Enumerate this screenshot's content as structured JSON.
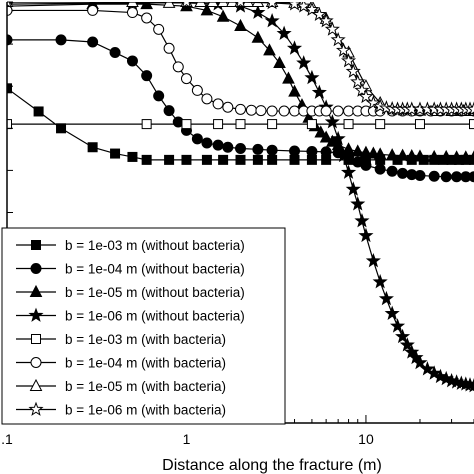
{
  "chart_data": {
    "type": "line",
    "xlabel": "Distance along the fracture (m)",
    "x_scale": "log",
    "x_ticks": [
      {
        "value": 0.1,
        "label": ".1"
      },
      {
        "value": 1,
        "label": "1"
      },
      {
        "value": 10,
        "label": "10"
      }
    ],
    "xlim": [
      0.1,
      40
    ],
    "ylim": [
      0,
      1
    ],
    "grid": false,
    "legend_position": "lower-left",
    "series": [
      {
        "name": "b = 1e-03 m (without bacteria)",
        "marker": "filled-square",
        "x": [
          0.1,
          0.15,
          0.2,
          0.3,
          0.4,
          0.5,
          0.6,
          0.8,
          1,
          1.3,
          1.6,
          2,
          2.5,
          3,
          4,
          5,
          6,
          8,
          10,
          12,
          15,
          18,
          21,
          24,
          27,
          30,
          33,
          36,
          40
        ],
        "y": [
          0.795,
          0.74,
          0.7,
          0.655,
          0.64,
          0.632,
          0.625,
          0.625,
          0.625,
          0.625,
          0.625,
          0.625,
          0.625,
          0.625,
          0.625,
          0.625,
          0.625,
          0.625,
          0.625,
          0.625,
          0.625,
          0.625,
          0.625,
          0.625,
          0.625,
          0.625,
          0.625,
          0.625,
          0.625
        ]
      },
      {
        "name": "b = 1e-04 m (without bacteria)",
        "marker": "filled-circle",
        "x": [
          0.1,
          0.2,
          0.3,
          0.4,
          0.5,
          0.6,
          0.7,
          0.8,
          0.9,
          1,
          1.15,
          1.3,
          1.5,
          1.7,
          2,
          2.5,
          3,
          4,
          5,
          6,
          7,
          8,
          9,
          10,
          12,
          14,
          16,
          18,
          20,
          24,
          28,
          32,
          36,
          40
        ],
        "y": [
          0.91,
          0.91,
          0.905,
          0.88,
          0.86,
          0.825,
          0.777,
          0.742,
          0.715,
          0.695,
          0.675,
          0.665,
          0.66,
          0.655,
          0.652,
          0.65,
          0.648,
          0.646,
          0.645,
          0.644,
          0.642,
          0.632,
          0.62,
          0.612,
          0.603,
          0.598,
          0.593,
          0.59,
          0.588,
          0.586,
          0.585,
          0.585,
          0.585,
          0.585
        ]
      },
      {
        "name": "b = 1e-05 m (without bacteria)",
        "marker": "filled-triangle",
        "x": [
          0.1,
          0.3,
          0.6,
          1,
          1.3,
          1.6,
          2,
          2.5,
          2.9,
          3.3,
          3.7,
          4,
          4.4,
          4.8,
          5.2,
          5.6,
          6,
          6.5,
          7,
          8,
          9,
          10,
          11,
          12,
          14,
          16,
          18,
          20,
          24,
          28,
          32,
          36,
          40
        ],
        "y": [
          0.99,
          0.995,
          0.995,
          0.99,
          0.98,
          0.965,
          0.943,
          0.915,
          0.885,
          0.855,
          0.818,
          0.787,
          0.755,
          0.725,
          0.705,
          0.69,
          0.678,
          0.668,
          0.66,
          0.65,
          0.645,
          0.642,
          0.64,
          0.638,
          0.636,
          0.635,
          0.634,
          0.633,
          0.632,
          0.632,
          0.631,
          0.631,
          0.631
        ]
      },
      {
        "name": "b = 1e-06 m (without bacteria)",
        "marker": "filled-star",
        "x": [
          0.1,
          0.5,
          1,
          1.5,
          2,
          2.5,
          3,
          3.5,
          4,
          4.5,
          5,
          5.5,
          6,
          6.5,
          7,
          7.5,
          8,
          8.5,
          9,
          9.5,
          10,
          11,
          12,
          13,
          14,
          15,
          16,
          17,
          18,
          19,
          20,
          22,
          24,
          26,
          28,
          30,
          32,
          34,
          36,
          38,
          40
        ],
        "y": [
          0.995,
          0.998,
          0.998,
          0.995,
          0.99,
          0.975,
          0.955,
          0.925,
          0.89,
          0.855,
          0.82,
          0.785,
          0.75,
          0.715,
          0.675,
          0.635,
          0.595,
          0.555,
          0.52,
          0.48,
          0.445,
          0.385,
          0.335,
          0.295,
          0.26,
          0.23,
          0.205,
          0.185,
          0.168,
          0.155,
          0.143,
          0.128,
          0.118,
          0.11,
          0.105,
          0.1,
          0.097,
          0.094,
          0.092,
          0.09,
          0.088
        ]
      },
      {
        "name": "b = 1e-03 m (with bacteria)",
        "marker": "open-square",
        "x": [
          0.1,
          0.6,
          1,
          1.5,
          2,
          3,
          5,
          8,
          12,
          20,
          40
        ],
        "y": [
          0.71,
          0.71,
          0.71,
          0.71,
          0.71,
          0.71,
          0.71,
          0.71,
          0.71,
          0.71,
          0.71
        ]
      },
      {
        "name": "b = 1e-04 m (with bacteria)",
        "marker": "open-circle",
        "x": [
          0.1,
          0.3,
          0.5,
          0.6,
          0.7,
          0.8,
          0.9,
          1,
          1.15,
          1.3,
          1.5,
          1.7,
          2,
          2.3,
          2.6,
          3,
          3.5,
          4,
          4.5,
          5,
          5.5,
          6,
          7,
          8,
          9,
          10,
          11,
          12,
          14,
          16,
          18,
          20,
          23,
          26,
          30,
          34,
          40
        ],
        "y": [
          0.98,
          0.98,
          0.975,
          0.962,
          0.935,
          0.89,
          0.846,
          0.818,
          0.79,
          0.77,
          0.758,
          0.75,
          0.745,
          0.743,
          0.742,
          0.741,
          0.741,
          0.741,
          0.741,
          0.741,
          0.741,
          0.741,
          0.741,
          0.741,
          0.741,
          0.741,
          0.741,
          0.741,
          0.741,
          0.741,
          0.741,
          0.741,
          0.741,
          0.741,
          0.741,
          0.741,
          0.741
        ]
      },
      {
        "name": "b = 1e-05 m (with bacteria)",
        "marker": "open-triangle",
        "x": [
          0.1,
          0.5,
          0.8,
          1,
          1.2,
          1.4,
          1.6,
          1.8,
          2,
          2.2,
          2.5,
          3,
          4,
          5,
          6,
          8,
          10,
          12,
          15,
          20,
          25,
          30,
          35,
          40
        ],
        "y": [
          1,
          1,
          0.998,
          1,
          1,
          1,
          1,
          1,
          1,
          1,
          1,
          1,
          0.998,
          0.99,
          0.96,
          0.88,
          0.8,
          0.76,
          0.745,
          0.742,
          0.741,
          0.741,
          0.741,
          0.741
        ]
      },
      {
        "name": "b = 1e-06 m (with bacteria)",
        "marker": "open-star",
        "x": [
          0.1,
          1,
          2,
          3,
          4,
          4.5,
          5,
          5.5,
          6,
          6.5,
          7,
          7.5,
          8,
          8.5,
          9,
          9.5,
          10,
          11,
          12,
          13,
          14,
          15,
          16,
          17,
          18,
          20,
          22,
          24,
          26,
          28,
          30,
          32,
          34,
          36,
          38,
          40
        ],
        "y": [
          1,
          1,
          1,
          0.998,
          0.995,
          0.99,
          0.982,
          0.97,
          0.955,
          0.935,
          0.91,
          0.885,
          0.86,
          0.835,
          0.81,
          0.79,
          0.775,
          0.76,
          0.752,
          0.748,
          0.746,
          0.745,
          0.745,
          0.745,
          0.745,
          0.745,
          0.745,
          0.745,
          0.745,
          0.745,
          0.745,
          0.745,
          0.745,
          0.745,
          0.745,
          0.745
        ]
      }
    ]
  }
}
